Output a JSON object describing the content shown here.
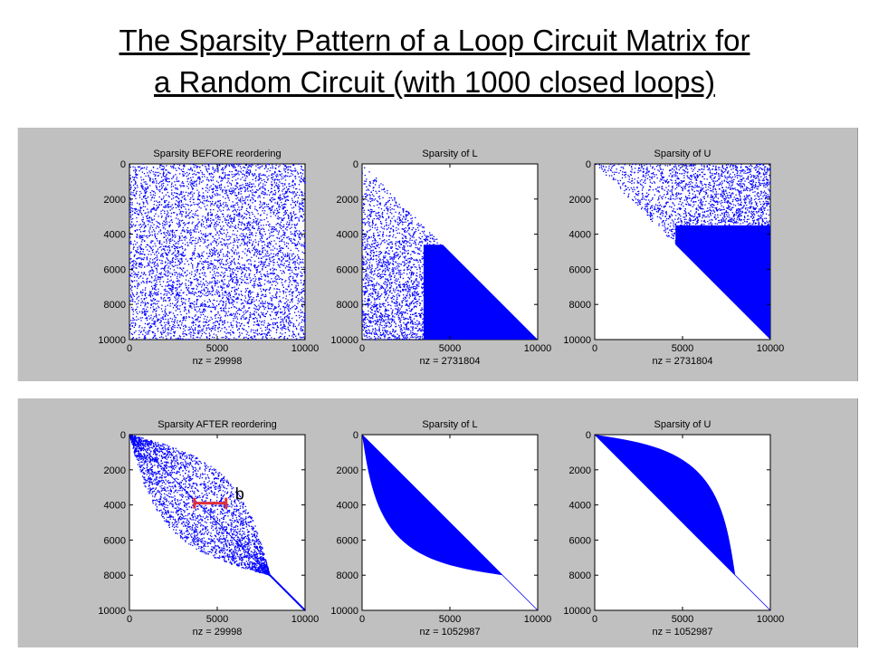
{
  "title_line1": "The Sparsity Pattern of a Loop Circuit Matrix for",
  "title_line2": "a Random Circuit (with 1000 closed loops)",
  "colors": {
    "nonzero": "#0000ff",
    "background": "#c0c0c0",
    "axes": "#ffffff",
    "annotation": "#e0303a"
  },
  "chart_data": [
    {
      "type": "spy",
      "pattern": "random",
      "title": "Sparsity BEFORE reordering",
      "xlabel": "nz = 29998",
      "xlim": [
        0,
        10000
      ],
      "ylim": [
        10000,
        0
      ],
      "xticks": [
        0,
        5000,
        10000
      ],
      "yticks": [
        0,
        2000,
        4000,
        6000,
        8000,
        10000
      ]
    },
    {
      "type": "spy",
      "pattern": "lower-triangular",
      "title": "Sparsity of L",
      "xlabel": "nz = 2731804",
      "xlim": [
        0,
        10000
      ],
      "ylim": [
        10000,
        0
      ],
      "xticks": [
        0,
        5000,
        10000
      ],
      "yticks": [
        0,
        2000,
        4000,
        6000,
        8000,
        10000
      ]
    },
    {
      "type": "spy",
      "pattern": "upper-triangular",
      "title": "Sparsity of U",
      "xlabel": "nz = 2731804",
      "xlim": [
        0,
        10000
      ],
      "ylim": [
        10000,
        0
      ],
      "xticks": [
        0,
        5000,
        10000
      ],
      "yticks": [
        0,
        2000,
        4000,
        6000,
        8000,
        10000
      ]
    },
    {
      "type": "spy",
      "pattern": "banded",
      "title": "Sparsity AFTER reordering",
      "xlabel": "nz = 29998",
      "xlim": [
        0,
        10000
      ],
      "ylim": [
        10000,
        0
      ],
      "xticks": [
        0,
        5000,
        10000
      ],
      "yticks": [
        0,
        2000,
        4000,
        6000,
        8000,
        10000
      ],
      "annotation": {
        "text": "b",
        "x_from": 3700,
        "x_to": 5500,
        "y": 3900
      }
    },
    {
      "type": "spy",
      "pattern": "banded-lower",
      "title": "Sparsity of L",
      "xlabel": "nz = 1052987",
      "xlim": [
        0,
        10000
      ],
      "ylim": [
        10000,
        0
      ],
      "xticks": [
        0,
        5000,
        10000
      ],
      "yticks": [
        0,
        2000,
        4000,
        6000,
        8000,
        10000
      ]
    },
    {
      "type": "spy",
      "pattern": "banded-upper",
      "title": "Sparsity of U",
      "xlabel": "nz = 1052987",
      "xlim": [
        0,
        10000
      ],
      "ylim": [
        10000,
        0
      ],
      "xticks": [
        0,
        5000,
        10000
      ],
      "yticks": [
        0,
        2000,
        4000,
        6000,
        8000,
        10000
      ]
    }
  ]
}
